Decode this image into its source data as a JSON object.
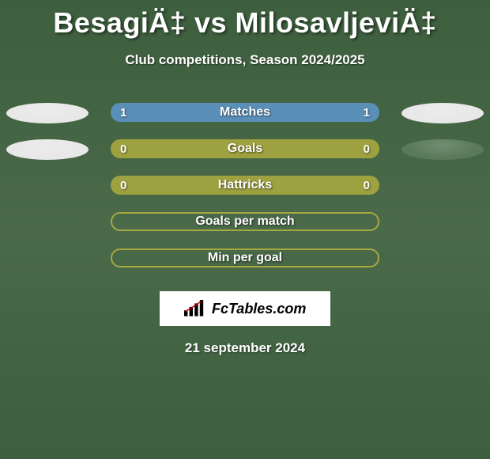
{
  "title": "BesagiÄ‡ vs MilosavljeviÄ‡",
  "subtitle": "Club competitions, Season 2024/2025",
  "date": "21 september 2024",
  "logo_text": "FcTables.com",
  "colors": {
    "bar_blue": "#5a8fb8",
    "bar_olive": "#9ea13f",
    "bar_empty_border": "#a6a840",
    "ellipse_light": "#e8e8e8",
    "ellipse_dark": "#5a7a5a"
  },
  "rows": [
    {
      "label": "Matches",
      "left_val": "1",
      "right_val": "1",
      "bar_color": "#5a8fb8",
      "left_ellipse": "#e8e8e8",
      "right_ellipse": "#e8e8e8",
      "filled": true
    },
    {
      "label": "Goals",
      "left_val": "0",
      "right_val": "0",
      "bar_color": "#9ea13f",
      "left_ellipse": "#e8e8e8",
      "right_ellipse": "#5a7a5a",
      "filled": true
    },
    {
      "label": "Hattricks",
      "left_val": "0",
      "right_val": "0",
      "bar_color": "#9ea13f",
      "left_ellipse": null,
      "right_ellipse": null,
      "filled": true
    },
    {
      "label": "Goals per match",
      "left_val": "",
      "right_val": "",
      "bar_color": "#a6a840",
      "left_ellipse": null,
      "right_ellipse": null,
      "filled": false
    },
    {
      "label": "Min per goal",
      "left_val": "",
      "right_val": "",
      "bar_color": "#a6a840",
      "left_ellipse": null,
      "right_ellipse": null,
      "filled": false
    }
  ]
}
